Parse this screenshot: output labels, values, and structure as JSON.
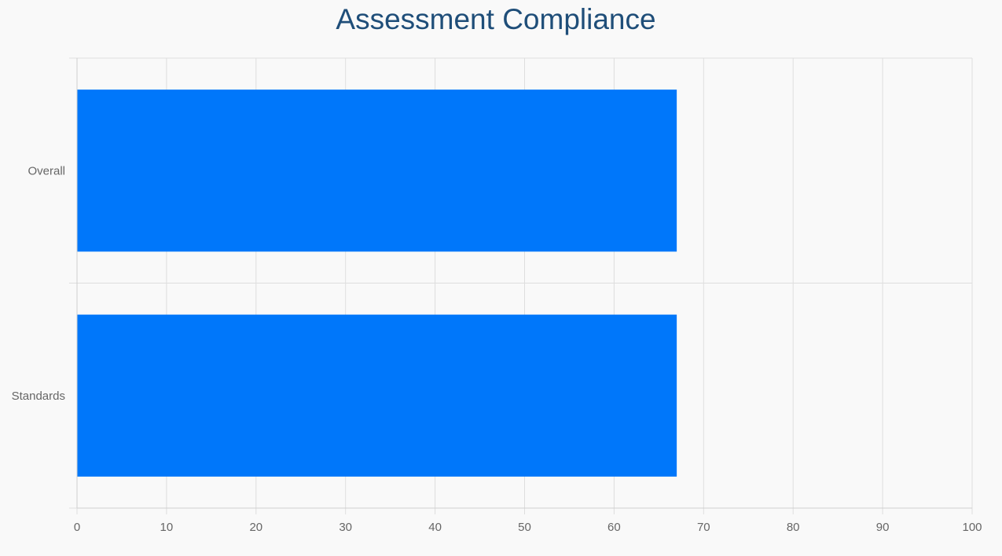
{
  "chart_data": {
    "type": "bar",
    "orientation": "horizontal",
    "title": "Assessment Compliance",
    "categories": [
      "Overall",
      "Standards"
    ],
    "values": [
      67,
      67
    ],
    "xlim": [
      0,
      100
    ],
    "xticks": [
      "0",
      "10",
      "20",
      "30",
      "40",
      "50",
      "60",
      "70",
      "80",
      "90",
      "100"
    ],
    "grid": true,
    "legend": "none",
    "bar_color": "#0077fa"
  }
}
